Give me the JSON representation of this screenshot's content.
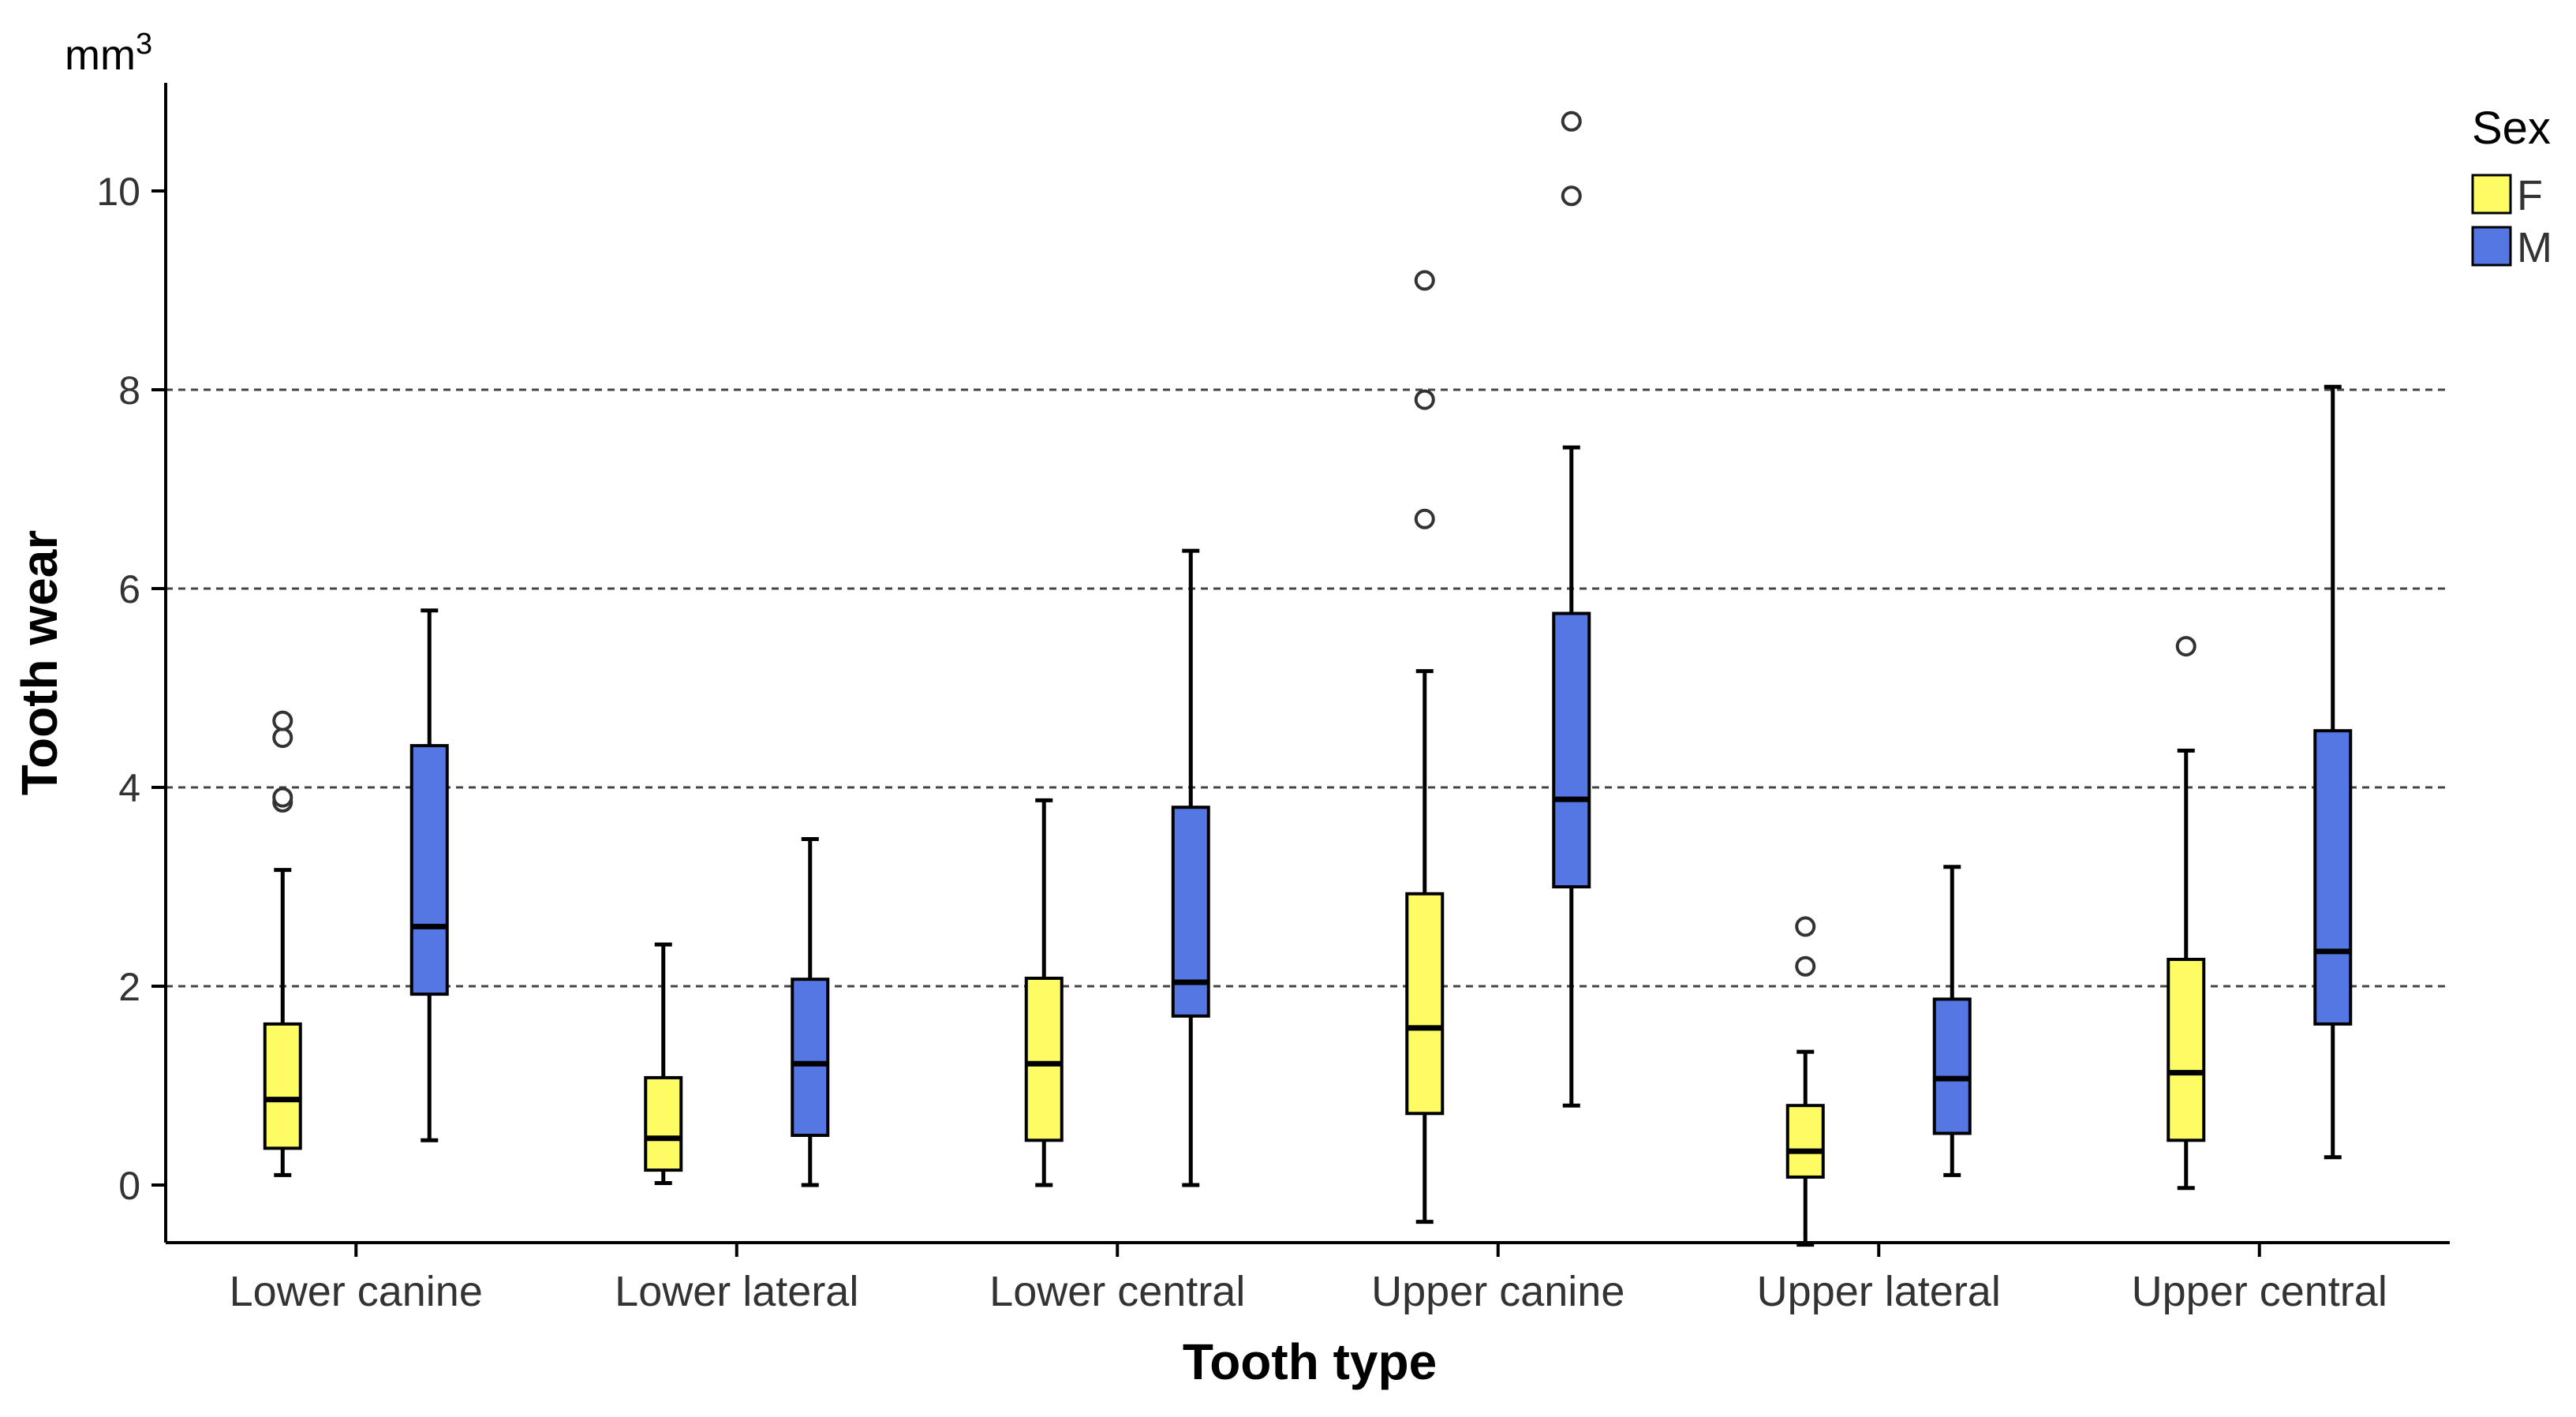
{
  "chart_data": {
    "type": "boxplot",
    "title": "",
    "xlabel": "Tooth type",
    "ylabel": "Tooth wear",
    "unit_base": "mm",
    "unit_exp": "3",
    "ylim": [
      -0.6,
      11.1
    ],
    "yticks": [
      0,
      2,
      4,
      6,
      8,
      10
    ],
    "gridlines": [
      2,
      4,
      6,
      8
    ],
    "grid_style": "dashed horizontal",
    "categories": [
      "Lower canine",
      "Lower lateral",
      "Lower central",
      "Upper canine",
      "Upper lateral",
      "Upper central"
    ],
    "legend": {
      "title": "Sex",
      "position": "top-right",
      "entries": [
        {
          "label": "F",
          "color": "#fdfd63"
        },
        {
          "label": "M",
          "color": "#5577e4"
        }
      ]
    },
    "series": [
      {
        "name": "F",
        "color": "#fdfd63",
        "boxes": [
          {
            "min": 0.1,
            "q1": 0.37,
            "median": 0.86,
            "q3": 1.62,
            "max": 3.17,
            "outliers": [
              3.85,
              3.9,
              4.5,
              4.67
            ]
          },
          {
            "min": 0.02,
            "q1": 0.15,
            "median": 0.47,
            "q3": 1.08,
            "max": 2.42,
            "outliers": []
          },
          {
            "min": 0.0,
            "q1": 0.45,
            "median": 1.22,
            "q3": 2.08,
            "max": 3.87,
            "outliers": []
          },
          {
            "min": -0.37,
            "q1": 0.72,
            "median": 1.58,
            "q3": 2.93,
            "max": 5.17,
            "outliers": [
              6.7,
              7.9,
              9.1
            ]
          },
          {
            "min": -0.6,
            "q1": 0.08,
            "median": 0.34,
            "q3": 0.8,
            "max": 1.34,
            "outliers": [
              2.2,
              2.6
            ]
          },
          {
            "min": -0.03,
            "q1": 0.45,
            "median": 1.13,
            "q3": 2.27,
            "max": 4.37,
            "outliers": [
              5.42
            ]
          }
        ]
      },
      {
        "name": "M",
        "color": "#5577e4",
        "boxes": [
          {
            "min": 0.45,
            "q1": 1.92,
            "median": 2.6,
            "q3": 4.42,
            "max": 5.78,
            "outliers": []
          },
          {
            "min": 0.0,
            "q1": 0.5,
            "median": 1.22,
            "q3": 2.07,
            "max": 3.48,
            "outliers": []
          },
          {
            "min": 0.0,
            "q1": 1.7,
            "median": 2.04,
            "q3": 3.8,
            "max": 6.38,
            "outliers": []
          },
          {
            "min": 0.8,
            "q1": 3.0,
            "median": 3.88,
            "q3": 5.75,
            "max": 7.42,
            "outliers": [
              9.95,
              10.7
            ]
          },
          {
            "min": 0.1,
            "q1": 0.52,
            "median": 1.07,
            "q3": 1.87,
            "max": 3.2,
            "outliers": []
          },
          {
            "min": 0.28,
            "q1": 1.62,
            "median": 2.35,
            "q3": 4.57,
            "max": 8.03,
            "outliers": []
          }
        ]
      }
    ]
  }
}
